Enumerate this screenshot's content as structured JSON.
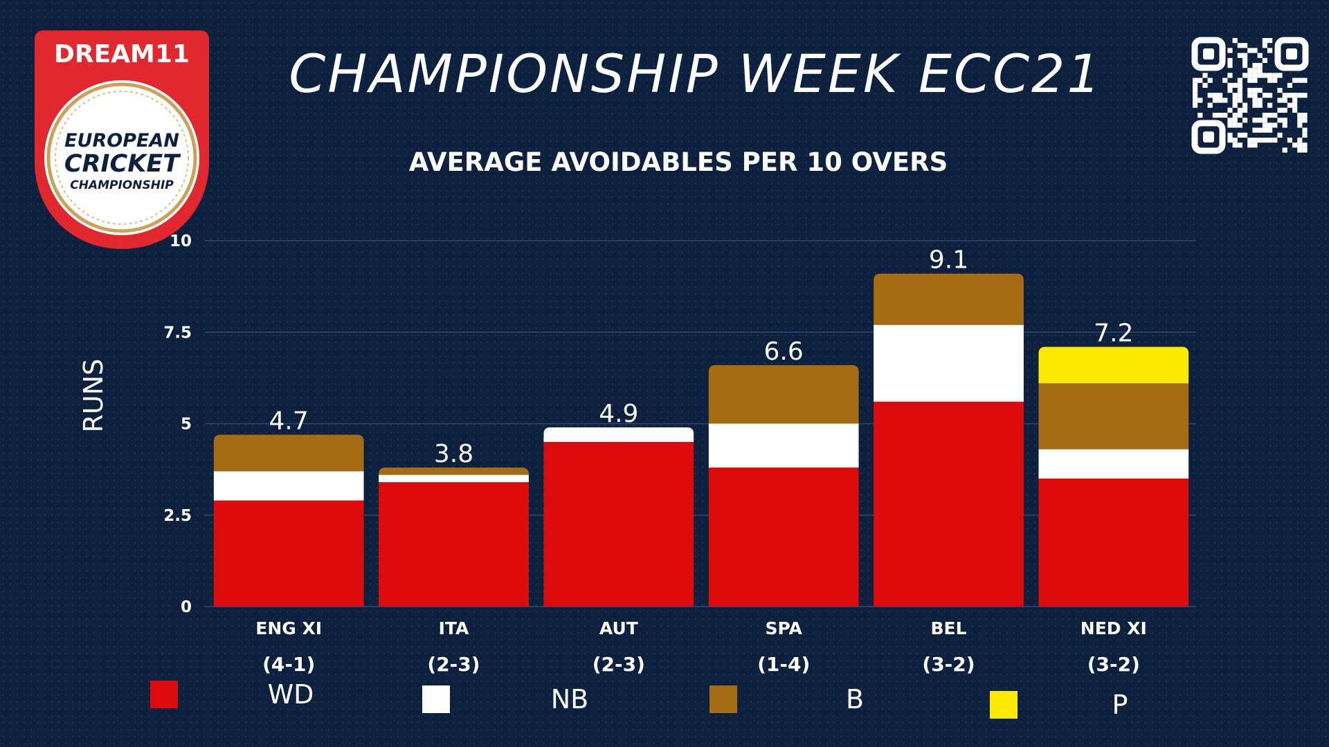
{
  "header": {
    "brand_logo_text": "DREAM11",
    "logo_text": [
      "EUROPEAN",
      "CRICKET",
      "CHAMPIONSHIP"
    ],
    "title": "CHAMPIONSHIP WEEK ECC21",
    "subtitle": "AVERAGE AVOIDABLES PER 10 OVERS"
  },
  "colors": {
    "background": "#0d213f",
    "WD": "#dd0b0b",
    "NB": "#ffffff",
    "B": "#a66c13",
    "P": "#fbea00",
    "logo_red": "#e0282e"
  },
  "chart_data": {
    "type": "bar",
    "stacked": true,
    "title": "AVERAGE AVOIDABLES PER 10 OVERS",
    "ylabel": "RUNS",
    "xlabel": "",
    "ylim": [
      0,
      10
    ],
    "yticks": [
      0,
      2.5,
      5,
      7.5,
      10
    ],
    "ytick_labels": [
      "0",
      "2.5",
      "5",
      "7.5",
      "10"
    ],
    "grid": true,
    "legend_position": "bottom",
    "categories": [
      "ENG XI",
      "ITA",
      "AUT",
      "SPA",
      "BEL",
      "NED XI"
    ],
    "records": [
      "(4-1)",
      "(2-3)",
      "(2-3)",
      "(1-4)",
      "(3-2)",
      "(3-2)"
    ],
    "totals": [
      4.7,
      3.8,
      4.9,
      6.6,
      9.1,
      7.2
    ],
    "total_labels": [
      "4.7",
      "3.8",
      "4.9",
      "6.6",
      "9.1",
      "7.2"
    ],
    "series": [
      {
        "name": "WD",
        "values": [
          2.9,
          3.4,
          4.5,
          3.8,
          5.6,
          3.5
        ]
      },
      {
        "name": "NB",
        "values": [
          0.8,
          0.2,
          0.4,
          1.2,
          2.1,
          0.8
        ]
      },
      {
        "name": "B",
        "values": [
          1.0,
          0.2,
          0.0,
          1.6,
          1.4,
          1.8
        ]
      },
      {
        "name": "P",
        "values": [
          0.0,
          0.0,
          0.0,
          0.0,
          0.0,
          1.0
        ]
      }
    ]
  }
}
